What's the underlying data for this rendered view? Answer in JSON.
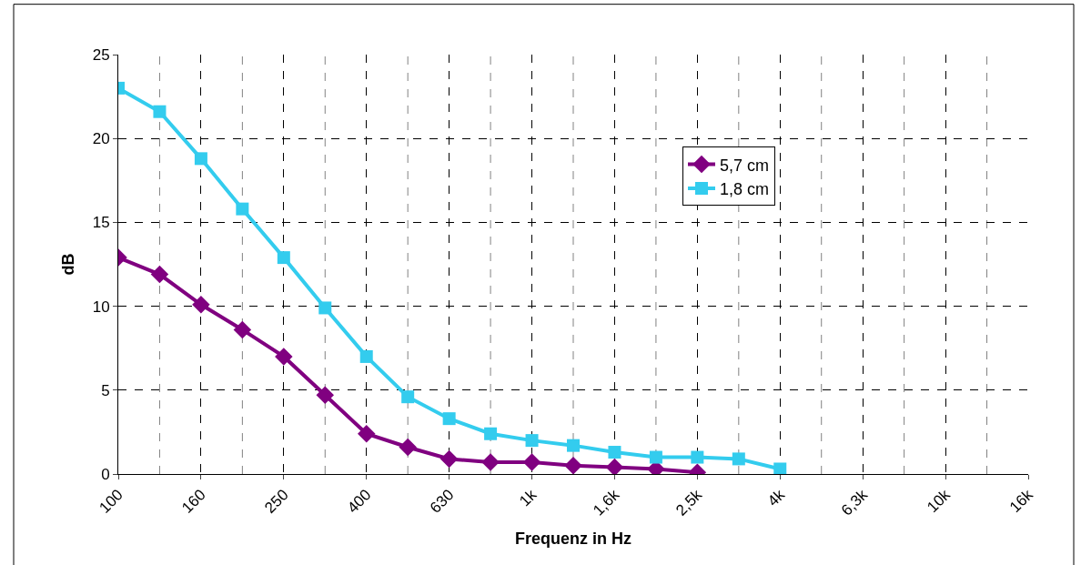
{
  "chart_data": {
    "type": "line",
    "xlabel": "Frequenz in Hz",
    "ylabel": "dB",
    "categories": [
      "100",
      null,
      "160",
      null,
      "250",
      null,
      "400",
      null,
      "630",
      null,
      "1k",
      null,
      "1,6k",
      null,
      "2,5k",
      null,
      "4k",
      null,
      "6,3k",
      null,
      "10k",
      null,
      "16k"
    ],
    "series": [
      {
        "name": "5,7 cm",
        "color": "#800080",
        "marker": "diamond",
        "values": [
          12.9,
          11.9,
          10.1,
          8.6,
          7.0,
          4.7,
          2.4,
          1.6,
          0.9,
          0.7,
          0.7,
          0.5,
          0.4,
          0.3,
          0.1,
          null,
          null,
          null,
          null,
          null,
          null,
          null,
          null
        ]
      },
      {
        "name": "1,8 cm",
        "color": "#33ccee",
        "marker": "square",
        "values": [
          23.0,
          21.6,
          18.8,
          15.8,
          12.9,
          9.9,
          7.0,
          4.6,
          3.3,
          2.4,
          2.0,
          1.7,
          1.3,
          1.0,
          1.0,
          0.9,
          0.3,
          null,
          null,
          null,
          null,
          null,
          null
        ]
      }
    ],
    "ylim": [
      0,
      25
    ],
    "yticks": [
      0,
      5,
      10,
      15,
      20,
      25
    ],
    "grid": true,
    "legend": "top right",
    "line_style": "solid"
  }
}
